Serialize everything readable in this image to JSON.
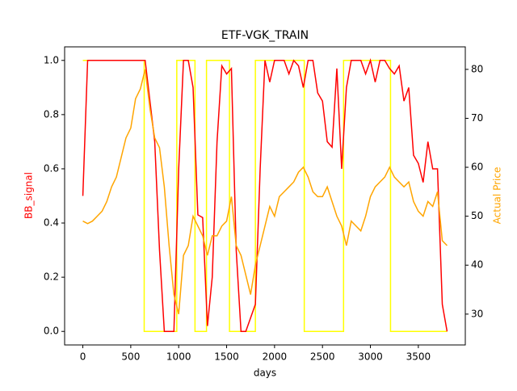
{
  "chart_data": {
    "type": "line",
    "title": "ETF-VGK_TRAIN",
    "x_label": "days",
    "y_label": "BB_signal",
    "y2_label": "Actual Price",
    "xlim": [
      -190,
      3990
    ],
    "xticks": [
      0,
      500,
      1000,
      1500,
      2000,
      2500,
      3000,
      3500
    ],
    "ylim": [
      -0.05,
      1.05
    ],
    "yticks": [
      {
        "value": 0,
        "label": "0.0"
      },
      {
        "value": 0.2,
        "label": "0.2"
      },
      {
        "value": 0.4,
        "label": "0.4"
      },
      {
        "value": 0.6,
        "label": "0.6"
      },
      {
        "value": 0.8,
        "label": "0.8"
      },
      {
        "value": 1,
        "label": "1.0"
      }
    ],
    "y2lim": [
      23.7,
      84.6
    ],
    "y2ticks": [
      30,
      40,
      50,
      60,
      70,
      80
    ],
    "y_label_color": "red",
    "y2_label_color": "orange",
    "x": [
      0,
      50,
      100,
      150,
      200,
      250,
      300,
      350,
      400,
      450,
      500,
      550,
      600,
      650,
      700,
      750,
      800,
      850,
      900,
      950,
      1000,
      1050,
      1100,
      1150,
      1200,
      1250,
      1300,
      1350,
      1400,
      1450,
      1500,
      1550,
      1600,
      1650,
      1700,
      1750,
      1800,
      1850,
      1900,
      1950,
      2000,
      2050,
      2100,
      2150,
      2200,
      2250,
      2300,
      2350,
      2400,
      2450,
      2500,
      2550,
      2600,
      2650,
      2700,
      2750,
      2800,
      2850,
      2900,
      2950,
      3000,
      3050,
      3100,
      3150,
      3200,
      3250,
      3300,
      3350,
      3400,
      3450,
      3500,
      3550,
      3600,
      3650,
      3700,
      3750,
      3800
    ],
    "series": [
      {
        "color": "yellow",
        "x": [
          0,
          640,
          640,
          980,
          980,
          1170,
          1170,
          1290,
          1290,
          1530,
          1530,
          1800,
          1800,
          2310,
          2310,
          2720,
          2720,
          3210,
          3210,
          3800
        ],
        "values": [
          1,
          1,
          0,
          0,
          1,
          1,
          0,
          0,
          1,
          1,
          0,
          0,
          1,
          1,
          0,
          0,
          1,
          1,
          0,
          0
        ]
      },
      {
        "color": "red",
        "values": [
          0.5,
          1,
          1,
          1,
          1,
          1,
          1,
          1,
          1,
          1,
          1,
          1,
          1,
          1,
          0.85,
          0.7,
          0.3,
          0,
          0,
          0,
          0.6,
          1,
          1,
          0.9,
          0.43,
          0.42,
          0.02,
          0.2,
          0.7,
          0.98,
          0.95,
          0.97,
          0.3,
          0,
          0,
          0.05,
          0.1,
          0.6,
          1,
          0.92,
          1,
          1,
          1,
          0.95,
          1,
          0.98,
          0.9,
          1,
          1,
          0.88,
          0.85,
          0.7,
          0.68,
          0.97,
          0.6,
          0.9,
          1,
          1,
          1,
          0.95,
          1,
          0.92,
          1,
          1,
          0.97,
          0.95,
          0.98,
          0.85,
          0.9,
          0.65,
          0.62,
          0.55,
          0.7,
          0.6,
          0.6,
          0.1,
          0
        ]
      },
      {
        "color": "orange",
        "axis": "y2",
        "values": [
          49,
          48.5,
          49,
          50,
          51,
          53,
          56,
          58,
          62,
          66,
          68,
          74,
          76,
          80,
          72,
          66,
          64,
          56,
          44,
          34,
          30,
          42,
          44,
          50,
          48,
          46,
          42,
          46,
          46,
          48,
          49,
          54,
          44,
          42,
          38,
          34,
          40,
          44,
          48,
          52,
          50,
          54,
          55,
          56,
          57,
          59,
          60,
          58,
          55,
          54,
          54,
          56,
          53,
          50,
          48,
          44,
          49,
          48,
          47,
          50,
          54,
          56,
          57,
          58,
          60,
          58,
          57,
          56,
          57,
          53,
          51,
          50,
          53,
          52,
          55,
          45,
          44
        ]
      }
    ]
  }
}
